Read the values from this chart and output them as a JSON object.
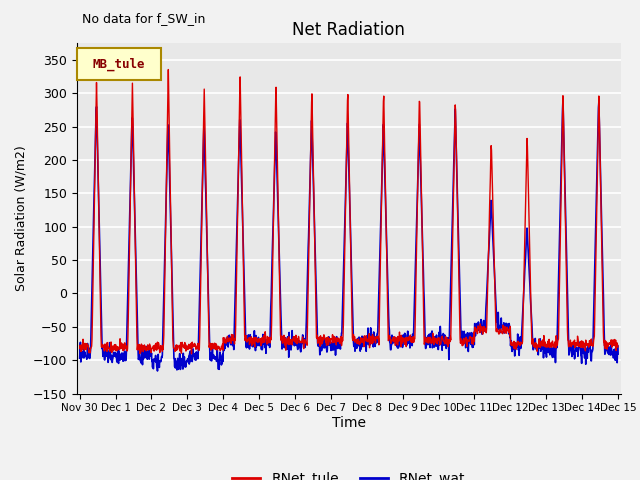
{
  "title": "Net Radiation",
  "xlabel": "Time",
  "ylabel": "Solar Radiation (W/m2)",
  "annotation_text": "No data for f_SW_in",
  "legend_label": "MB_tule",
  "line1_label": "RNet_tule",
  "line2_label": "RNet_wat",
  "line1_color": "#DD0000",
  "line2_color": "#0000CC",
  "ylim": [
    -150,
    375
  ],
  "yticks": [
    -150,
    -100,
    -50,
    0,
    50,
    100,
    150,
    200,
    250,
    300,
    350
  ],
  "background_color": "#E8E8E8",
  "grid_color": "#FFFFFF",
  "start_day": -0.08,
  "end_day": 15.08,
  "peaks_tule": [
    320,
    315,
    335,
    310,
    330,
    315,
    310,
    308,
    305,
    304,
    293,
    230,
    238,
    302,
    302
  ],
  "nights_tule": [
    -80,
    -80,
    -80,
    -80,
    -70,
    -70,
    -70,
    -70,
    -70,
    -70,
    -70,
    -55,
    -75,
    -75,
    -75
  ],
  "peaks_wat": [
    290,
    275,
    265,
    255,
    268,
    248,
    262,
    260,
    254,
    253,
    277,
    140,
    100,
    295,
    293
  ],
  "nights_wat": [
    -92,
    -92,
    -103,
    -95,
    -75,
    -75,
    -75,
    -75,
    -72,
    -70,
    -70,
    -50,
    -80,
    -85,
    -88
  ],
  "pts_per_day": 96,
  "noise_seed": 12
}
